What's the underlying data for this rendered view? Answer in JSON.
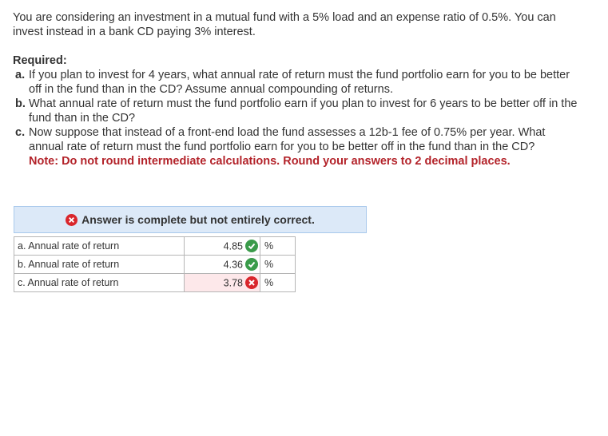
{
  "intro": "You are considering an investment in a mutual fund with a 5% load and an expense ratio of 0.5%. You can invest instead in a bank CD paying 3% interest.",
  "required": {
    "label": "Required:",
    "items": [
      {
        "letter": "a.",
        "text": "If you plan to invest for 4 years, what annual rate of return must the fund portfolio earn for you to be better off in the fund than in the CD? Assume annual compounding of returns."
      },
      {
        "letter": "b.",
        "text": "What annual rate of return must the fund portfolio earn if you plan to invest for 6 years to be better off in the fund than in the CD?"
      },
      {
        "letter": "c.",
        "text": "Now suppose that instead of a front-end load the fund assesses a 12b-1 fee of 0.75% per year. What annual rate of return must the fund portfolio earn for you to be better off in the fund than in the CD?"
      }
    ],
    "note": "Note: Do not round intermediate calculations. Round your answers to 2 decimal places."
  },
  "answer": {
    "status": "Answer is complete but not entirely correct.",
    "rows": [
      {
        "label": "a. Annual rate of return",
        "value": "4.85",
        "unit": "%"
      },
      {
        "label": "b. Annual rate of return",
        "value": "4.36",
        "unit": "%"
      },
      {
        "label": "c. Annual rate of return",
        "value": "3.78",
        "unit": "%"
      }
    ]
  }
}
